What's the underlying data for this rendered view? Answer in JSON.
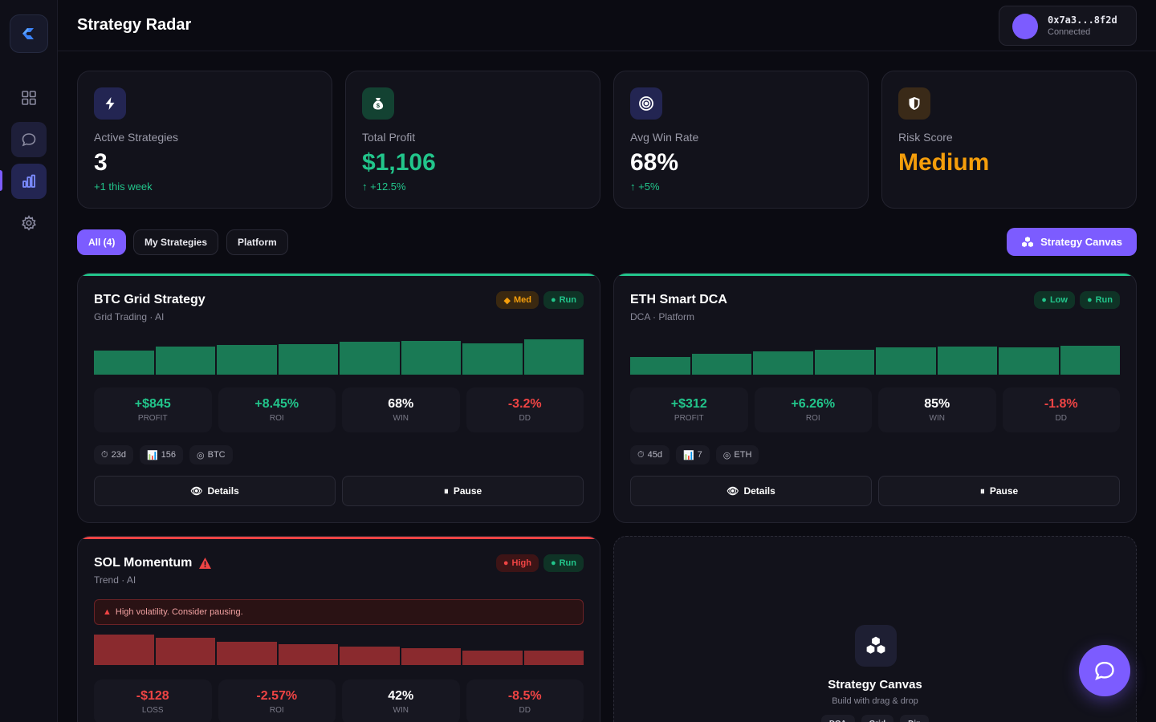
{
  "app": {
    "title": "Strategy Radar"
  },
  "sidebar": {
    "items": [
      {
        "name": "dashboard",
        "icon": "grid-icon"
      },
      {
        "name": "chat",
        "icon": "chat-icon"
      },
      {
        "name": "analytics",
        "icon": "bar-chart-icon"
      },
      {
        "name": "settings",
        "icon": "gear-icon"
      }
    ]
  },
  "wallet": {
    "address": "0x7a3...8f2d",
    "status": "Connected"
  },
  "stats": [
    {
      "label": "Active Strategies",
      "value": "3",
      "delta": "+1 this week",
      "icon": "bolt-icon"
    },
    {
      "label": "Total Profit",
      "value": "$1,106",
      "delta": "+12.5%",
      "icon": "money-bag-icon"
    },
    {
      "label": "Avg Win Rate",
      "value": "68%",
      "delta": "+5%",
      "icon": "target-icon"
    },
    {
      "label": "Risk Score",
      "value": "Medium",
      "delta": "",
      "icon": "shield-icon"
    }
  ],
  "filters": {
    "all": "All (4)",
    "mine": "My Strategies",
    "platform": "Platform"
  },
  "canvas_button": "Strategy Canvas",
  "strategies": [
    {
      "name": "BTC Grid Strategy",
      "sub": "Grid Trading · AI",
      "risk": "Med",
      "status": "Run",
      "bars": [
        0.62,
        0.72,
        0.78,
        0.8,
        0.85,
        0.88,
        0.82,
        0.92
      ],
      "metrics": [
        {
          "value": "+$845",
          "label": "PROFIT"
        },
        {
          "value": "+8.45%",
          "label": "ROI"
        },
        {
          "value": "68%",
          "label": "WIN"
        },
        {
          "value": "-3.2%",
          "label": "DD"
        }
      ],
      "tags": [
        "23d",
        "156",
        "BTC"
      ],
      "details": "Details",
      "pause": "Pause"
    },
    {
      "name": "ETH Smart DCA",
      "sub": "DCA · Platform",
      "risk": "Low",
      "status": "Run",
      "bars": [
        0.45,
        0.55,
        0.6,
        0.65,
        0.7,
        0.72,
        0.7,
        0.76
      ],
      "metrics": [
        {
          "value": "+$312",
          "label": "PROFIT"
        },
        {
          "value": "+6.26%",
          "label": "ROI"
        },
        {
          "value": "85%",
          "label": "WIN"
        },
        {
          "value": "-1.8%",
          "label": "DD"
        }
      ],
      "tags": [
        "45d",
        "7",
        "ETH"
      ],
      "details": "Details",
      "pause": "Pause"
    },
    {
      "name": "SOL Momentum",
      "sub": "Trend · AI",
      "risk": "High",
      "status": "Run",
      "warning": "High volatility. Consider pausing.",
      "bars": [
        0.95,
        0.85,
        0.72,
        0.65,
        0.58,
        0.52,
        0.45,
        0.45
      ],
      "metrics": [
        {
          "value": "-$128",
          "label": "LOSS"
        },
        {
          "value": "-2.57%",
          "label": "ROI"
        },
        {
          "value": "42%",
          "label": "WIN"
        },
        {
          "value": "-8.5%",
          "label": "DD"
        }
      ]
    }
  ],
  "empty_card": {
    "title": "Strategy Canvas",
    "subtitle": "Build with drag & drop",
    "chips": [
      "DCA",
      "Grid",
      "Dip"
    ]
  },
  "colors": {
    "accent": "#7c5cff",
    "positive": "#22c58b",
    "negative": "#ef4444",
    "warning": "#f59e0b"
  }
}
